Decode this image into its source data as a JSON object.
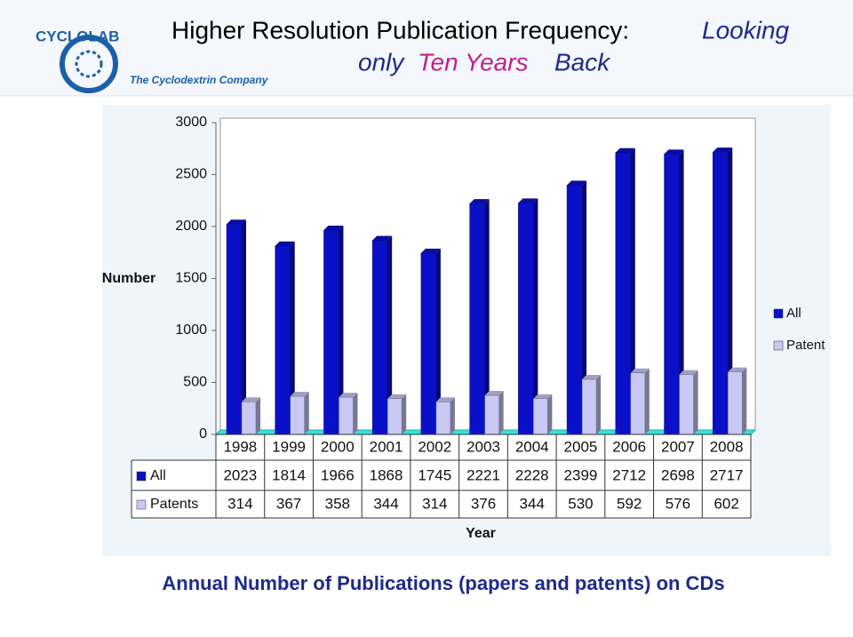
{
  "logo": {
    "name": "CYCLOLAB",
    "tagline": "The Cyclodextrin Company"
  },
  "caption": "Annual Number of Publications (papers and patents) on CDs",
  "chart_data": {
    "type": "bar",
    "title_parts": [
      "Higher Resolution Publication Frequency:",
      "Looking",
      "only",
      "Ten Years",
      "Back"
    ],
    "y_label": "Number",
    "x_label": "Year",
    "categories": [
      "1998",
      "1999",
      "2000",
      "2001",
      "2002",
      "2003",
      "2004",
      "2005",
      "2006",
      "2007",
      "2008"
    ],
    "series": [
      {
        "name": "All",
        "color": "#0a10c8",
        "values": [
          2023,
          1814,
          1966,
          1868,
          1745,
          2221,
          2228,
          2399,
          2712,
          2698,
          2717
        ]
      },
      {
        "name": "Patent",
        "color": "#c8c8f4",
        "values": [
          314,
          367,
          358,
          344,
          314,
          376,
          344,
          530,
          592,
          576,
          602
        ]
      }
    ],
    "table_row_labels": [
      "All",
      "Patents"
    ],
    "ylim": [
      0,
      3000
    ],
    "yticks": [
      0,
      500,
      1000,
      1500,
      2000,
      2500,
      3000
    ],
    "legend": "right"
  }
}
